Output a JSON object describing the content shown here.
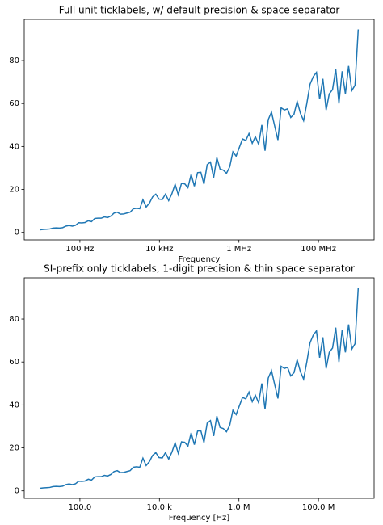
{
  "chart_data": [
    {
      "type": "line",
      "title": "Full unit ticklabels, w/ default precision & space separator",
      "x_label": "Frequency",
      "log_x": true,
      "xlim": [
        3.98,
        2510000000
      ],
      "ylim": [
        -3.5,
        99.2
      ],
      "xticks": [
        {
          "value": 100,
          "label": "100 Hz"
        },
        {
          "value": 10000,
          "label": "10 kHz"
        },
        {
          "value": 1000000,
          "label": "1 MHz"
        },
        {
          "value": 100000000,
          "label": "100 MHz"
        }
      ],
      "yticks": [
        0,
        20,
        40,
        60,
        80
      ],
      "series": [
        {
          "color": "#1f77b4",
          "x": [
            10,
            12.0,
            14.5,
            17.5,
            21.1,
            25.4,
            30.5,
            36.8,
            44.3,
            53.4,
            64.3,
            77.4,
            93.3,
            112,
            135,
            163,
            196,
            237,
            285,
            343,
            413,
            498,
            599,
            722,
            870,
            1050,
            1260,
            1520,
            1830,
            2210,
            2660,
            3200,
            3850,
            4640,
            5590,
            6730,
            8110,
            9770,
            11800,
            14200,
            17100,
            20600,
            24800,
            29800,
            35900,
            43300,
            52100,
            62800,
            75600,
            91100,
            110000,
            132000,
            159000,
            192000,
            231000,
            278000,
            335000,
            404000,
            486000,
            586000,
            705000,
            850000,
            1020000,
            1230000,
            1490000,
            1790000,
            2160000,
            2590000,
            3130000,
            3760000,
            4530000,
            5460000,
            6580000,
            7920000,
            9550000,
            11500000,
            13900000,
            16700000,
            20100000,
            24200000,
            29100000,
            35100000,
            42300000,
            50900000,
            61400000,
            73900000,
            89000000,
            107000000,
            129000000,
            156000000,
            187000000,
            226000000,
            272000000,
            327000000,
            394000000,
            475000000,
            572000000,
            689000000,
            830000000,
            1000000000
          ],
          "values": [
            1.2,
            1.4,
            1.5,
            1.6,
            2.0,
            2.1,
            2.0,
            2.2,
            2.9,
            3.2,
            2.9,
            3.3,
            4.5,
            4.4,
            4.6,
            5.4,
            5.0,
            6.5,
            6.6,
            6.6,
            7.2,
            6.9,
            7.6,
            9.0,
            9.4,
            8.5,
            8.6,
            9.0,
            9.4,
            11.0,
            11.2,
            11.0,
            15.2,
            11.8,
            13.6,
            16.5,
            17.8,
            15.5,
            15.3,
            17.8,
            14.8,
            18.0,
            22.4,
            17.5,
            22.8,
            22.6,
            20.8,
            27.0,
            21.5,
            27.8,
            28.0,
            22.5,
            31.5,
            32.7,
            25.5,
            34.8,
            29.5,
            29.0,
            27.5,
            30.5,
            37.5,
            35.5,
            39.5,
            43.5,
            42.8,
            46.0,
            41.5,
            44.5,
            41.0,
            50.0,
            38.0,
            52.5,
            56.0,
            49.5,
            43.0,
            58.0,
            57.0,
            57.5,
            53.5,
            55.0,
            61.0,
            55.5,
            52.0,
            60.0,
            69.0,
            72.5,
            74.5,
            62.0,
            71.5,
            57.0,
            64.5,
            66.5,
            76.0,
            60.0,
            75.0,
            64.5,
            77.5,
            66.0,
            68.5,
            94.5
          ]
        }
      ]
    },
    {
      "type": "line",
      "title": "SI-prefix only ticklabels, 1-digit precision & thin space separator",
      "x_label": "Frequency [Hz]",
      "log_x": true,
      "xlim": [
        3.98,
        2510000000
      ],
      "ylim": [
        -3.5,
        99.2
      ],
      "xticks": [
        {
          "value": 100,
          "label": "100.0"
        },
        {
          "value": 10000,
          "label": "10.0 k"
        },
        {
          "value": 1000000,
          "label": "1.0 M"
        },
        {
          "value": 100000000,
          "label": "100.0 M"
        }
      ],
      "yticks": [
        0,
        20,
        40,
        60,
        80
      ],
      "series": [
        {
          "color": "#1f77b4",
          "x": [
            10,
            12.0,
            14.5,
            17.5,
            21.1,
            25.4,
            30.5,
            36.8,
            44.3,
            53.4,
            64.3,
            77.4,
            93.3,
            112,
            135,
            163,
            196,
            237,
            285,
            343,
            413,
            498,
            599,
            722,
            870,
            1050,
            1260,
            1520,
            1830,
            2210,
            2660,
            3200,
            3850,
            4640,
            5590,
            6730,
            8110,
            9770,
            11800,
            14200,
            17100,
            20600,
            24800,
            29800,
            35900,
            43300,
            52100,
            62800,
            75600,
            91100,
            110000,
            132000,
            159000,
            192000,
            231000,
            278000,
            335000,
            404000,
            486000,
            586000,
            705000,
            850000,
            1020000,
            1230000,
            1490000,
            1790000,
            2160000,
            2590000,
            3130000,
            3760000,
            4530000,
            5460000,
            6580000,
            7920000,
            9550000,
            11500000,
            13900000,
            16700000,
            20100000,
            24200000,
            29100000,
            35100000,
            42300000,
            50900000,
            61400000,
            73900000,
            89000000,
            107000000,
            129000000,
            156000000,
            187000000,
            226000000,
            272000000,
            327000000,
            394000000,
            475000000,
            572000000,
            689000000,
            830000000,
            1000000000
          ],
          "values": [
            1.2,
            1.4,
            1.5,
            1.6,
            2.0,
            2.1,
            2.0,
            2.2,
            2.9,
            3.2,
            2.9,
            3.3,
            4.5,
            4.4,
            4.6,
            5.4,
            5.0,
            6.5,
            6.6,
            6.6,
            7.2,
            6.9,
            7.6,
            9.0,
            9.4,
            8.5,
            8.6,
            9.0,
            9.4,
            11.0,
            11.2,
            11.0,
            15.2,
            11.8,
            13.6,
            16.5,
            17.8,
            15.5,
            15.3,
            17.8,
            14.8,
            18.0,
            22.4,
            17.5,
            22.8,
            22.6,
            20.8,
            27.0,
            21.5,
            27.8,
            28.0,
            22.5,
            31.5,
            32.7,
            25.5,
            34.8,
            29.5,
            29.0,
            27.5,
            30.5,
            37.5,
            35.5,
            39.5,
            43.5,
            42.8,
            46.0,
            41.5,
            44.5,
            41.0,
            50.0,
            38.0,
            52.5,
            56.0,
            49.5,
            43.0,
            58.0,
            57.0,
            57.5,
            53.5,
            55.0,
            61.0,
            55.5,
            52.0,
            60.0,
            69.0,
            72.5,
            74.5,
            62.0,
            71.5,
            57.0,
            64.5,
            66.5,
            76.0,
            60.0,
            75.0,
            64.5,
            77.5,
            66.0,
            68.5,
            94.5
          ]
        }
      ]
    }
  ]
}
